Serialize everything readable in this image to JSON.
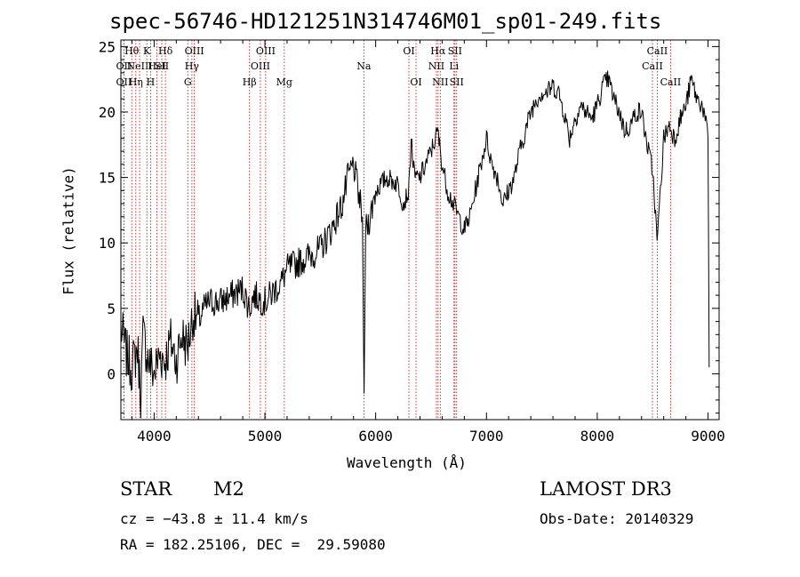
{
  "chart_data": {
    "type": "line",
    "title": "spec-56746-HD121251N314746M01_sp01-249.fits",
    "xlabel": "Wavelength (Å)",
    "ylabel": "Flux (relative)",
    "xlim": [
      3700,
      9100
    ],
    "ylim": [
      -3.5,
      25.5
    ],
    "xticks": [
      4000,
      5000,
      6000,
      7000,
      8000,
      9000
    ],
    "yticks": [
      0,
      5,
      10,
      15,
      20,
      25
    ],
    "series": [
      {
        "name": "spectrum",
        "x": [
          3700,
          3750,
          3800,
          3850,
          3880,
          3900,
          3950,
          4000,
          4050,
          4100,
          4150,
          4200,
          4250,
          4300,
          4350,
          4400,
          4450,
          4500,
          4600,
          4700,
          4800,
          4860,
          4900,
          5000,
          5100,
          5150,
          5200,
          5300,
          5400,
          5500,
          5600,
          5700,
          5750,
          5800,
          5850,
          5880,
          5895,
          5910,
          5950,
          6000,
          6100,
          6200,
          6250,
          6300,
          6320,
          6350,
          6400,
          6450,
          6500,
          6560,
          6600,
          6650,
          6700,
          6750,
          6800,
          6850,
          6900,
          6950,
          7000,
          7050,
          7100,
          7150,
          7200,
          7250,
          7300,
          7350,
          7400,
          7450,
          7500,
          7550,
          7600,
          7650,
          7700,
          7750,
          7800,
          7850,
          7900,
          7950,
          8000,
          8050,
          8100,
          8150,
          8200,
          8250,
          8300,
          8350,
          8400,
          8450,
          8500,
          8520,
          8540,
          8560,
          8600,
          8650,
          8700,
          8750,
          8800,
          8850,
          8900,
          8950,
          9000,
          9010
        ],
        "y": [
          3.5,
          1.5,
          0.5,
          2.0,
          -1.5,
          3.0,
          1.0,
          0.0,
          1.5,
          1.0,
          2.5,
          1.0,
          3.0,
          2.0,
          4.5,
          4.0,
          5.0,
          5.5,
          5.5,
          6.0,
          6.5,
          5.0,
          6.0,
          5.5,
          6.5,
          7.0,
          8.0,
          8.5,
          9.0,
          9.5,
          11.0,
          13.0,
          15.0,
          16.0,
          13.5,
          12.0,
          -1.5,
          11.0,
          12.0,
          14.0,
          15.0,
          14.5,
          13.0,
          14.0,
          18.0,
          15.0,
          15.0,
          16.0,
          17.0,
          18.5,
          16.0,
          14.0,
          13.0,
          12.0,
          11.0,
          12.0,
          14.0,
          16.0,
          18.0,
          16.0,
          15.0,
          13.0,
          14.0,
          15.0,
          17.0,
          18.5,
          20.0,
          21.0,
          21.5,
          21.5,
          22.0,
          21.5,
          20.0,
          18.0,
          19.5,
          20.5,
          20.0,
          19.5,
          20.5,
          22.0,
          22.5,
          21.0,
          20.0,
          18.5,
          19.0,
          20.0,
          20.0,
          17.5,
          15.5,
          13.0,
          10.0,
          12.5,
          18.0,
          19.0,
          18.0,
          19.5,
          20.5,
          22.5,
          21.0,
          20.5,
          18.0,
          0.5
        ]
      }
    ],
    "line_markers": [
      {
        "wavelength": 3727,
        "label": "OII",
        "row": 2
      },
      {
        "wavelength": 3727,
        "label": "OII",
        "row": 1
      },
      {
        "wavelength": 3798,
        "label": "Hθ",
        "row": 0
      },
      {
        "wavelength": 3835,
        "label": "Hη",
        "row": 2
      },
      {
        "wavelength": 3869,
        "label": "NeIII",
        "row": 1
      },
      {
        "wavelength": 3934,
        "label": "K",
        "row": 0
      },
      {
        "wavelength": 3968,
        "label": "H",
        "row": 2
      },
      {
        "wavelength": 4026,
        "label": "HeI",
        "row": 1
      },
      {
        "wavelength": 4069,
        "label": "SII",
        "row": 1
      },
      {
        "wavelength": 4102,
        "label": "Hδ",
        "row": 0
      },
      {
        "wavelength": 4304,
        "label": "G",
        "row": 2
      },
      {
        "wavelength": 4341,
        "label": "Hγ",
        "row": 1
      },
      {
        "wavelength": 4363,
        "label": "OIII",
        "row": 0
      },
      {
        "wavelength": 4861,
        "label": "Hβ",
        "row": 2
      },
      {
        "wavelength": 4959,
        "label": "OIII",
        "row": 1
      },
      {
        "wavelength": 5007,
        "label": "OIII",
        "row": 0
      },
      {
        "wavelength": 5175,
        "label": "Mg",
        "row": 2
      },
      {
        "wavelength": 5893,
        "label": "Na",
        "row": 1
      },
      {
        "wavelength": 6300,
        "label": "OI",
        "row": 0
      },
      {
        "wavelength": 6364,
        "label": "OI",
        "row": 2
      },
      {
        "wavelength": 6548,
        "label": "NII",
        "row": 1
      },
      {
        "wavelength": 6563,
        "label": "Hα",
        "row": 0
      },
      {
        "wavelength": 6583,
        "label": "NII",
        "row": 2
      },
      {
        "wavelength": 6707,
        "label": "Li",
        "row": 1
      },
      {
        "wavelength": 6716,
        "label": "SII",
        "row": 0
      },
      {
        "wavelength": 6731,
        "label": "SII",
        "row": 2
      },
      {
        "wavelength": 8498,
        "label": "CaII",
        "row": 1
      },
      {
        "wavelength": 8542,
        "label": "CaII",
        "row": 0
      },
      {
        "wavelength": 8662,
        "label": "CaII",
        "row": 2
      }
    ],
    "marker_color": "#cc0000",
    "line_color": "#000000"
  },
  "info": {
    "class": "STAR",
    "subclass": "M2",
    "survey": "LAMOST DR3",
    "cz": "cz = −43.8 ± 11.4 km/s",
    "obs_date": "Obs-Date: 20140329",
    "coords": "RA = 182.25106, DEC =  29.59080"
  }
}
